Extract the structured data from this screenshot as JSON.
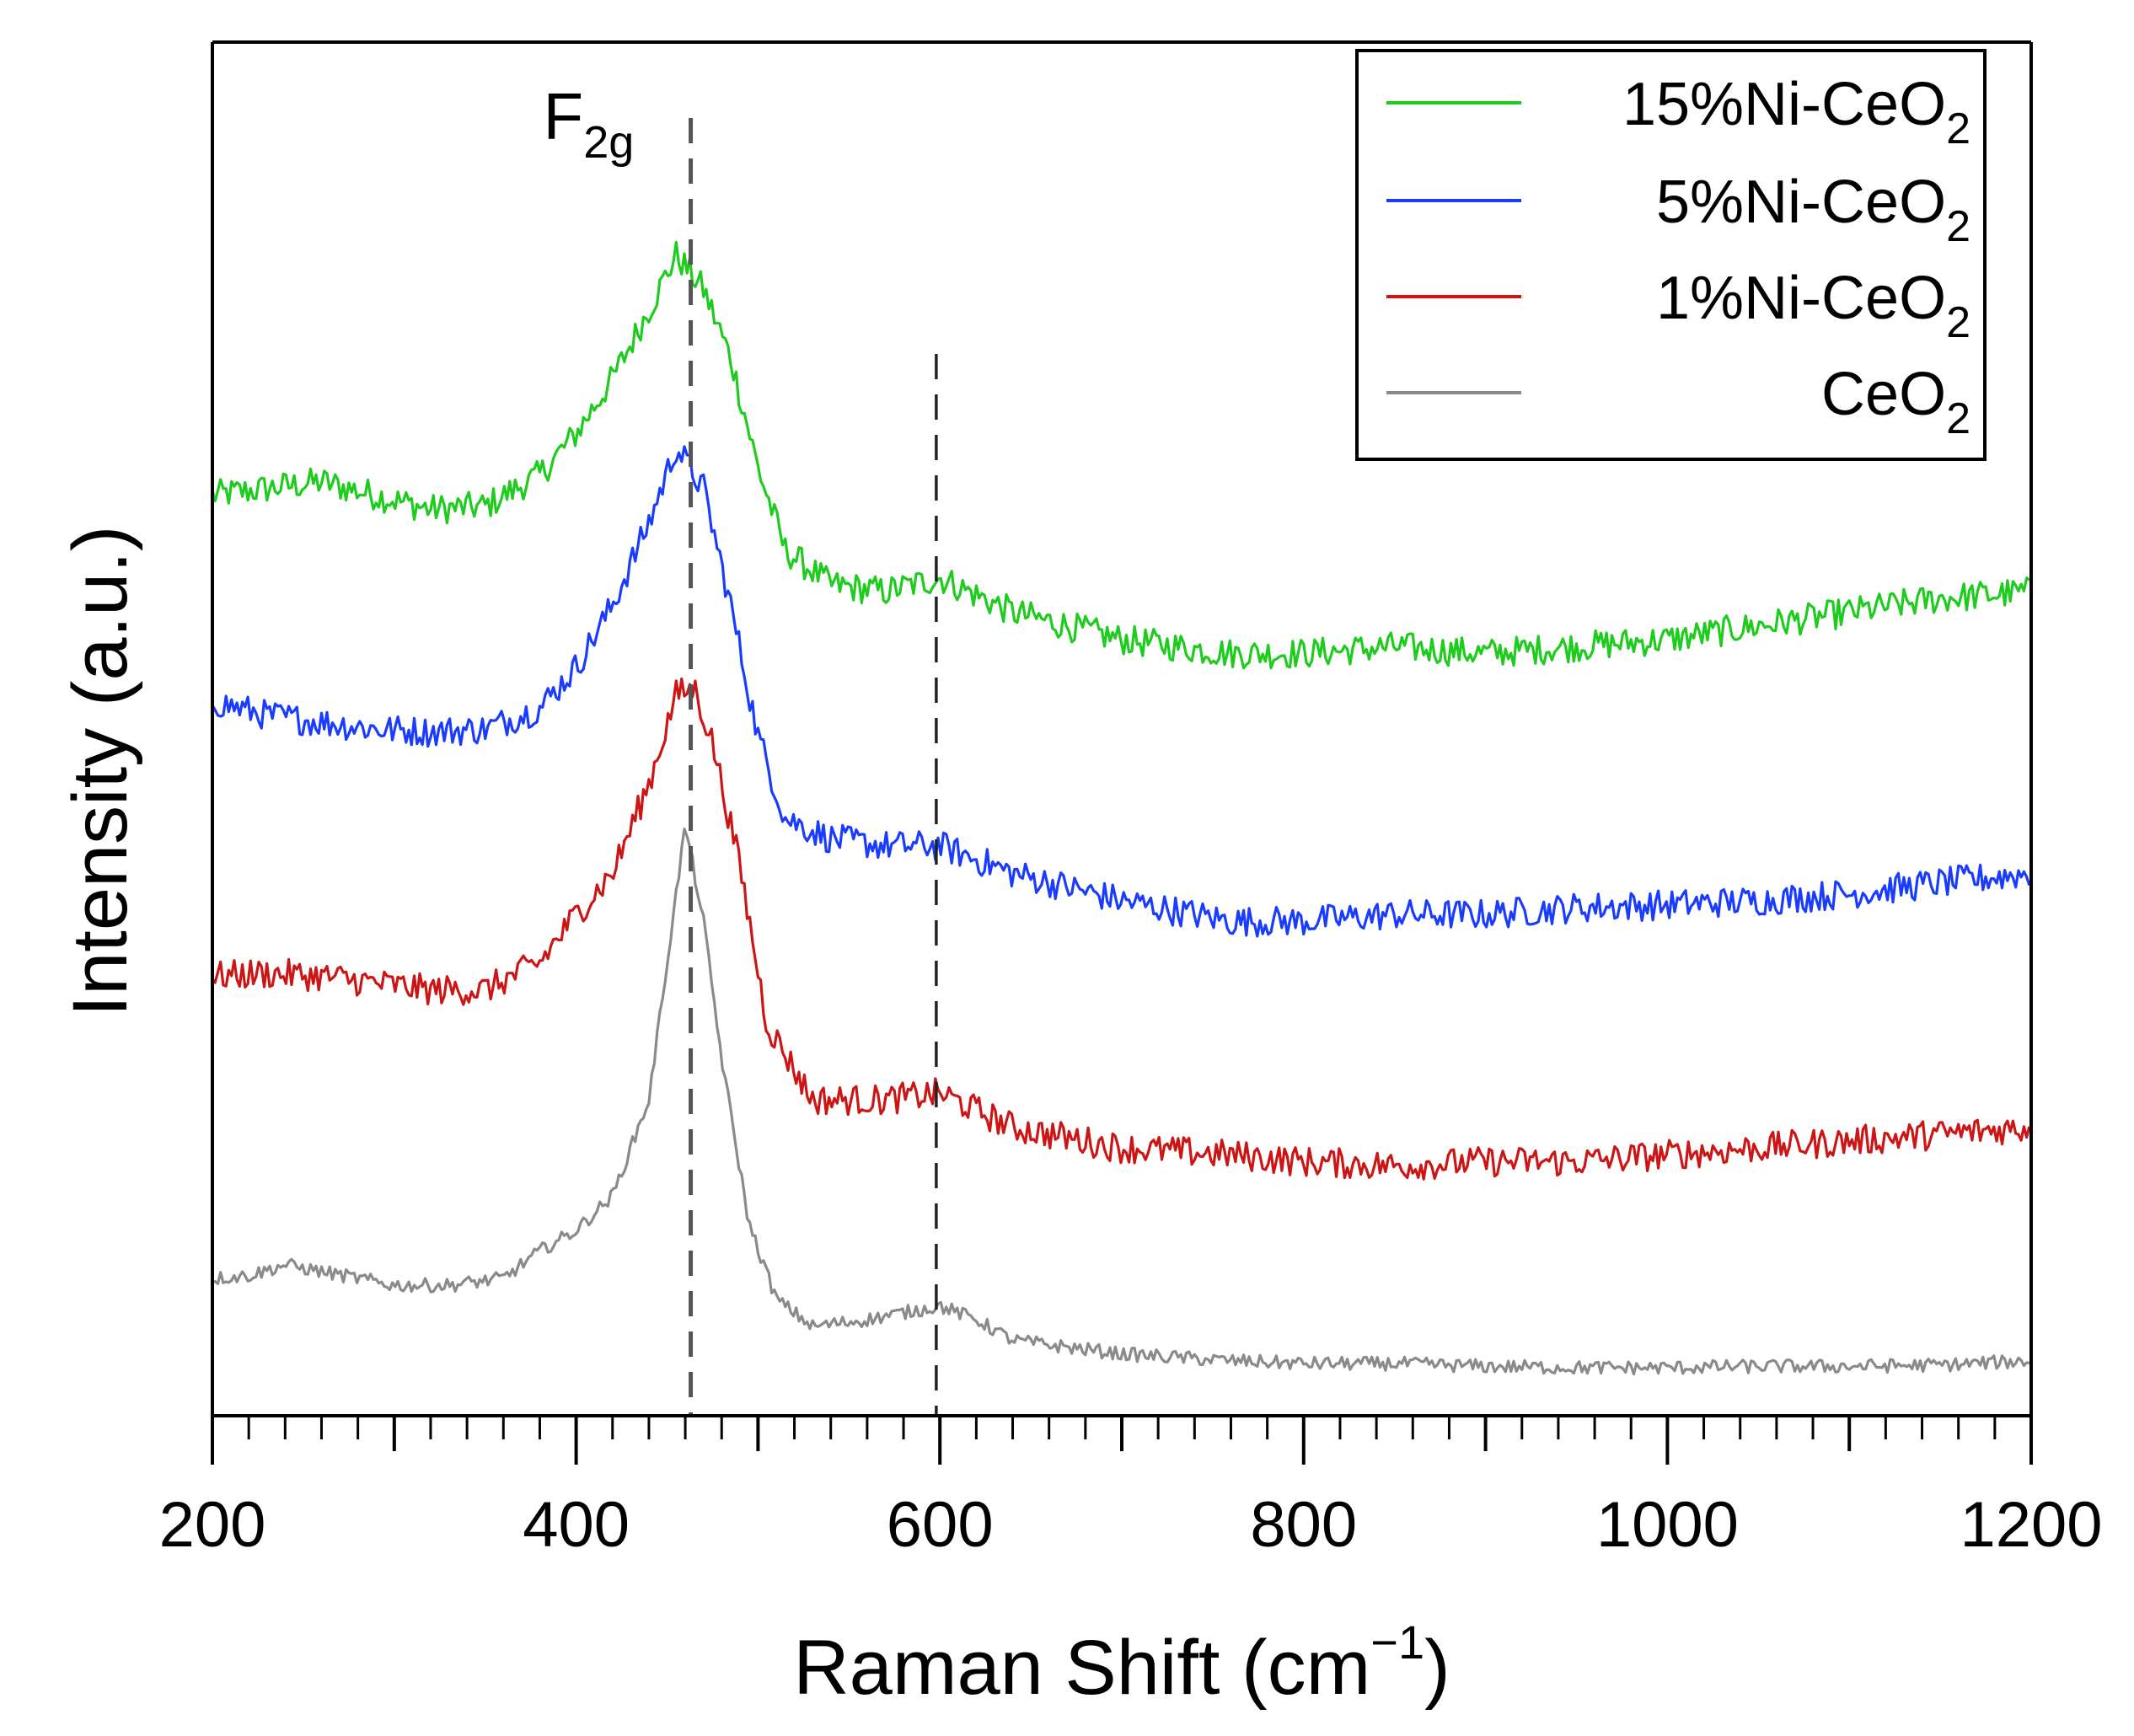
{
  "chart_data": {
    "type": "line",
    "title": "",
    "xlabel": "Raman Shift (cm",
    "xlabel_sup": "−1",
    "xlabel_close": ")",
    "ylabel": "Intensity (a.u.)",
    "xlim": [
      200,
      1200
    ],
    "ylim": [
      0,
      10
    ],
    "x_ticks": [
      "200",
      "400",
      "600",
      "800",
      "1000",
      "1200"
    ],
    "x_tick_values": [
      200,
      400,
      600,
      800,
      1000,
      1200
    ],
    "reference_lines": [
      {
        "x": 463,
        "style": "dashed",
        "label_main": "F",
        "label_sub": "2g"
      },
      {
        "x": 598,
        "style": "dashed"
      }
    ],
    "series": [
      {
        "name": "15%Ni-CeO",
        "name_sub": "2",
        "color": "#1ecc1e",
        "x": [
          200,
          230,
          260,
          290,
          320,
          350,
          380,
          400,
          420,
          440,
          455,
          470,
          485,
          500,
          515,
          540,
          570,
          600,
          640,
          700,
          760,
          800,
          850,
          900,
          950,
          1000,
          1050,
          1100,
          1150,
          1200
        ],
        "y": [
          6.7,
          6.75,
          6.8,
          6.7,
          6.6,
          6.62,
          6.85,
          7.15,
          7.55,
          8.05,
          8.45,
          8.2,
          7.7,
          6.9,
          6.3,
          6.05,
          6.0,
          6.1,
          5.85,
          5.65,
          5.55,
          5.55,
          5.6,
          5.55,
          5.6,
          5.65,
          5.75,
          5.85,
          5.95,
          6.0
        ]
      },
      {
        "name": "5%Ni-CeO",
        "name_sub": "2",
        "color": "#1a3cff",
        "x": [
          200,
          230,
          260,
          290,
          320,
          350,
          380,
          400,
          420,
          440,
          455,
          470,
          485,
          500,
          515,
          540,
          570,
          600,
          640,
          700,
          760,
          800,
          850,
          900,
          950,
          1000,
          1050,
          1100,
          1150,
          1200
        ],
        "y": [
          5.2,
          5.1,
          5.05,
          5.0,
          4.98,
          5.0,
          5.15,
          5.45,
          5.9,
          6.5,
          7.05,
          6.75,
          5.9,
          4.95,
          4.35,
          4.2,
          4.15,
          4.15,
          3.95,
          3.75,
          3.6,
          3.6,
          3.65,
          3.65,
          3.7,
          3.72,
          3.75,
          3.8,
          3.88,
          3.95
        ]
      },
      {
        "name": "1%Ni-CeO",
        "name_sub": "2",
        "color": "#cc1515",
        "x": [
          200,
          230,
          260,
          290,
          320,
          350,
          380,
          400,
          420,
          440,
          455,
          465,
          475,
          490,
          505,
          530,
          570,
          600,
          640,
          700,
          760,
          800,
          850,
          900,
          950,
          1000,
          1050,
          1100,
          1150,
          1200
        ],
        "y": [
          3.2,
          3.22,
          3.2,
          3.15,
          3.1,
          3.1,
          3.3,
          3.65,
          3.95,
          4.6,
          5.25,
          5.3,
          4.9,
          4.0,
          2.85,
          2.3,
          2.3,
          2.35,
          2.1,
          1.95,
          1.9,
          1.85,
          1.82,
          1.85,
          1.85,
          1.9,
          1.95,
          2.0,
          2.05,
          2.1
        ]
      },
      {
        "name": "CeO",
        "name_sub": "2",
        "color": "#8a8a8a",
        "x": [
          200,
          220,
          240,
          260,
          280,
          300,
          330,
          360,
          380,
          400,
          420,
          440,
          450,
          460,
          470,
          480,
          495,
          510,
          530,
          560,
          600,
          620,
          640,
          700,
          760,
          800,
          850,
          900,
          950,
          1000,
          1050,
          1100,
          1150,
          1200
        ],
        "y": [
          1.0,
          1.02,
          1.1,
          1.05,
          1.0,
          0.95,
          0.95,
          1.0,
          1.2,
          1.35,
          1.6,
          2.3,
          3.3,
          4.3,
          3.6,
          2.6,
          1.4,
          0.85,
          0.65,
          0.7,
          0.8,
          0.7,
          0.55,
          0.45,
          0.4,
          0.38,
          0.38,
          0.36,
          0.35,
          0.35,
          0.36,
          0.36,
          0.37,
          0.4
        ]
      }
    ],
    "legend_position": "top-right"
  }
}
